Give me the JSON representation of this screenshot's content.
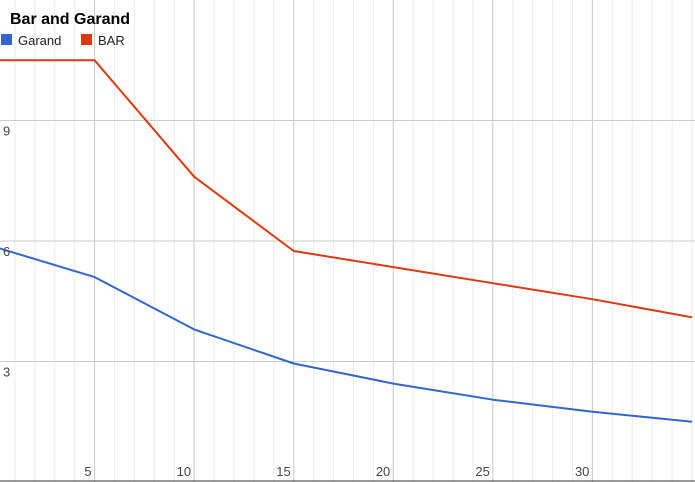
{
  "chart_data": {
    "type": "line",
    "title": "Bar and Garand",
    "xlabel": "",
    "ylabel": "",
    "xlim": [
      0,
      35
    ],
    "ylim": [
      0,
      12
    ],
    "x_ticks": [
      5,
      10,
      15,
      20,
      25,
      30
    ],
    "y_ticks": [
      3,
      6,
      9
    ],
    "grid": true,
    "legend_position": "top-left",
    "series": [
      {
        "name": "Garand",
        "color": "#3366cc",
        "x": [
          0,
          5,
          10,
          15,
          20,
          25,
          30,
          35
        ],
        "y": [
          5.85,
          5.1,
          3.8,
          2.95,
          2.45,
          2.05,
          1.75,
          1.5
        ]
      },
      {
        "name": "BAR",
        "color": "#dc3912",
        "x": [
          0,
          5,
          10,
          15,
          20,
          25,
          30,
          35
        ],
        "y": [
          10.5,
          10.5,
          7.6,
          5.75,
          5.35,
          4.95,
          4.55,
          4.1
        ]
      }
    ]
  }
}
